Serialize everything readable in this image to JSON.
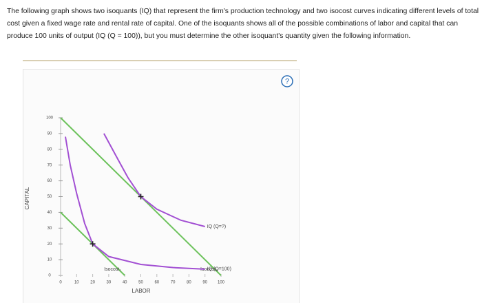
{
  "intro": "The following graph shows two isoquants (IQ) that represent the firm's production technology and two isocost curves indicating different levels of total cost given a fixed wage rate and rental rate of capital. One of the isoquants shows all of the possible combinations of labor and capital that can produce 100 units of output (IQ (Q = 100)), but you must determine the other isoquant's quantity given the following information.",
  "help": "?",
  "chart_data": {
    "type": "line",
    "x_label": "LABOR",
    "y_label": "CAPITAL",
    "xlim": [
      0,
      100
    ],
    "ylim": [
      0,
      100
    ],
    "xticks": [
      0,
      10,
      20,
      30,
      40,
      50,
      60,
      70,
      80,
      90,
      100
    ],
    "yticks": [
      0,
      10,
      20,
      30,
      40,
      50,
      60,
      70,
      80,
      90,
      100
    ],
    "series": [
      {
        "name": "Isocost₁",
        "color": "#6cc25b",
        "x": [
          0,
          40
        ],
        "values": [
          40,
          0
        ]
      },
      {
        "name": "Isocost₂",
        "color": "#6cc25b",
        "x": [
          0,
          100
        ],
        "values": [
          100,
          0
        ]
      },
      {
        "name": "IQ (Q=100)",
        "color": "#a24fd3",
        "x": [
          3,
          6,
          10,
          15,
          20,
          30,
          50,
          70,
          90
        ],
        "values": [
          88,
          70,
          52,
          33,
          20,
          12,
          7,
          5,
          4
        ]
      },
      {
        "name": "IQ (Q=?)",
        "color": "#a24fd3",
        "x": [
          27,
          35,
          42,
          50,
          60,
          75,
          90
        ],
        "values": [
          90,
          75,
          62,
          50,
          42,
          35,
          31
        ]
      }
    ],
    "markers": [
      {
        "x": 20,
        "y": 20
      },
      {
        "x": 50,
        "y": 50
      }
    ]
  }
}
